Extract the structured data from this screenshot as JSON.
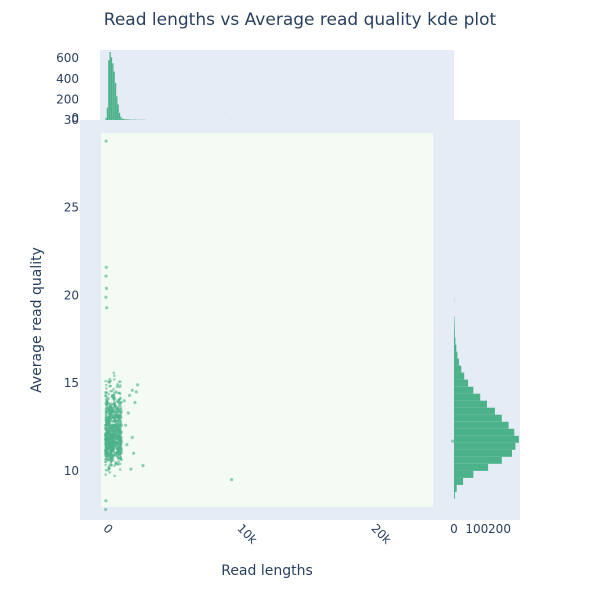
{
  "title": "Read lengths vs Average read quality kde plot",
  "chart_data": {
    "type": "scatter",
    "title": "Read lengths vs Average read quality kde plot",
    "xlabel": "Read lengths",
    "ylabel": "Average read quality",
    "xlim": [
      -1900,
      26000
    ],
    "ylim": [
      7.2,
      30
    ],
    "x_ticks": [
      {
        "value": 0,
        "label": "0"
      },
      {
        "value": 10000,
        "label": "10k"
      },
      {
        "value": 20000,
        "label": "20k"
      }
    ],
    "y_ticks": [
      {
        "value": 10,
        "label": "10"
      },
      {
        "value": 15,
        "label": "15"
      },
      {
        "value": 20,
        "label": "20"
      },
      {
        "value": 25,
        "label": "25"
      },
      {
        "value": 30,
        "label": "30"
      }
    ],
    "scatter_points": [
      {
        "x": 50,
        "y": 28.8
      },
      {
        "x": 60,
        "y": 21.6
      },
      {
        "x": 40,
        "y": 21.1
      },
      {
        "x": 80,
        "y": 20.4
      },
      {
        "x": 30,
        "y": 19.9
      },
      {
        "x": 90,
        "y": 19.3
      },
      {
        "x": 2400,
        "y": 14.9
      },
      {
        "x": 2300,
        "y": 14.5
      },
      {
        "x": 2000,
        "y": 14.6
      },
      {
        "x": 1800,
        "y": 14.3
      },
      {
        "x": 2200,
        "y": 13.9
      },
      {
        "x": 1700,
        "y": 13.3
      },
      {
        "x": 2000,
        "y": 11.9
      },
      {
        "x": 2100,
        "y": 11.0
      },
      {
        "x": 2800,
        "y": 10.3
      },
      {
        "x": 1900,
        "y": 10.1
      },
      {
        "x": 9400,
        "y": 9.5
      },
      {
        "x": 25900,
        "y": 11.7
      },
      {
        "x": 1500,
        "y": 12.6
      },
      {
        "x": 1600,
        "y": 11.5
      },
      {
        "x": 30,
        "y": 8.3
      },
      {
        "x": 20,
        "y": 7.8
      },
      {
        "x": 1400,
        "y": 14.0
      }
    ],
    "dense_region": {
      "x_min": 0,
      "x_max": 1200,
      "y_min": 8.8,
      "y_max": 17.5,
      "center_y": 12.0
    },
    "marginal_x": {
      "type": "histogram",
      "ylim": [
        0,
        660
      ],
      "y_ticks": [
        {
          "value": 200,
          "label": "200"
        },
        {
          "value": 400,
          "label": "400"
        },
        {
          "value": 600,
          "label": "600"
        },
        {
          "value": 0,
          "label": "0"
        }
      ],
      "bins": [
        {
          "x0": 0,
          "x1": 100,
          "count": 20
        },
        {
          "x0": 100,
          "x1": 200,
          "count": 120
        },
        {
          "x0": 200,
          "x1": 300,
          "count": 580
        },
        {
          "x0": 300,
          "x1": 400,
          "count": 660
        },
        {
          "x0": 400,
          "x1": 500,
          "count": 610
        },
        {
          "x0": 500,
          "x1": 600,
          "count": 550
        },
        {
          "x0": 600,
          "x1": 700,
          "count": 470
        },
        {
          "x0": 700,
          "x1": 800,
          "count": 360
        },
        {
          "x0": 800,
          "x1": 900,
          "count": 230
        },
        {
          "x0": 900,
          "x1": 1000,
          "count": 150
        },
        {
          "x0": 1000,
          "x1": 1100,
          "count": 70
        },
        {
          "x0": 1100,
          "x1": 1200,
          "count": 30
        },
        {
          "x0": 1200,
          "x1": 1400,
          "count": 12
        },
        {
          "x0": 1400,
          "x1": 1800,
          "count": 6
        },
        {
          "x0": 1800,
          "x1": 2400,
          "count": 3
        },
        {
          "x0": 2400,
          "x1": 3000,
          "count": 2
        },
        {
          "x0": 9300,
          "x1": 9500,
          "count": 1
        }
      ]
    },
    "marginal_y": {
      "type": "histogram",
      "xlim": [
        0,
        290
      ],
      "x_ticks": [
        {
          "value": 0,
          "label": "0"
        },
        {
          "value": 100,
          "label": "100"
        },
        {
          "value": 200,
          "label": "200"
        }
      ],
      "bins": [
        {
          "y0": 8.4,
          "y1": 8.8,
          "count": 4
        },
        {
          "y0": 8.8,
          "y1": 9.2,
          "count": 12
        },
        {
          "y0": 9.2,
          "y1": 9.6,
          "count": 40
        },
        {
          "y0": 9.6,
          "y1": 10.0,
          "count": 85
        },
        {
          "y0": 10.0,
          "y1": 10.4,
          "count": 150
        },
        {
          "y0": 10.4,
          "y1": 10.8,
          "count": 210
        },
        {
          "y0": 10.8,
          "y1": 11.2,
          "count": 255
        },
        {
          "y0": 11.2,
          "y1": 11.6,
          "count": 270
        },
        {
          "y0": 11.6,
          "y1": 12.0,
          "count": 285
        },
        {
          "y0": 12.0,
          "y1": 12.4,
          "count": 265
        },
        {
          "y0": 12.4,
          "y1": 12.8,
          "count": 240
        },
        {
          "y0": 12.8,
          "y1": 13.2,
          "count": 210
        },
        {
          "y0": 13.2,
          "y1": 13.6,
          "count": 180
        },
        {
          "y0": 13.6,
          "y1": 14.0,
          "count": 145
        },
        {
          "y0": 14.0,
          "y1": 14.4,
          "count": 115
        },
        {
          "y0": 14.4,
          "y1": 14.8,
          "count": 85
        },
        {
          "y0": 14.8,
          "y1": 15.2,
          "count": 62
        },
        {
          "y0": 15.2,
          "y1": 15.6,
          "count": 45
        },
        {
          "y0": 15.6,
          "y1": 16.0,
          "count": 32
        },
        {
          "y0": 16.0,
          "y1": 16.4,
          "count": 22
        },
        {
          "y0": 16.4,
          "y1": 16.8,
          "count": 15
        },
        {
          "y0": 16.8,
          "y1": 17.2,
          "count": 10
        },
        {
          "y0": 17.2,
          "y1": 17.6,
          "count": 6
        },
        {
          "y0": 17.6,
          "y1": 18.0,
          "count": 4
        },
        {
          "y0": 18.0,
          "y1": 18.4,
          "count": 3
        },
        {
          "y0": 18.4,
          "y1": 18.8,
          "count": 2
        },
        {
          "y0": 19.6,
          "y1": 19.8,
          "count": 1
        }
      ]
    },
    "colors": {
      "marker": "#4cb28a",
      "panel_bg": "#e5ecf6",
      "kde_bg": "#f4fbf2",
      "text": "#2a3f5f"
    },
    "grid": false,
    "legend": "none"
  }
}
